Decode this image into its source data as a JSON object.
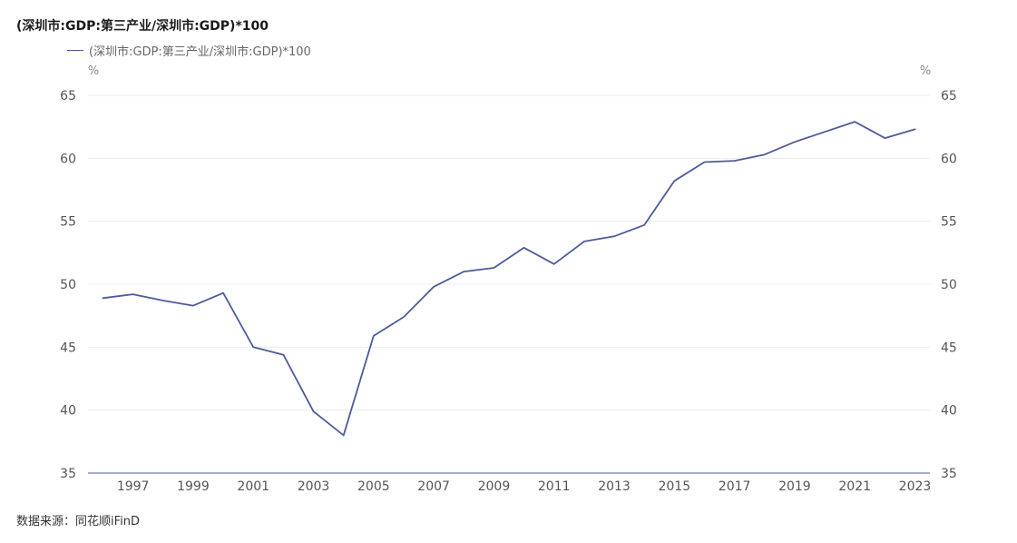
{
  "chart_data": {
    "type": "line",
    "title": "(深圳市:GDP:第三产业/深圳市:GDP)*100",
    "left_unit": "%",
    "right_unit": "%",
    "x": [
      "1996",
      "1997",
      "1998",
      "1999",
      "2000",
      "2001",
      "2002",
      "2003",
      "2004",
      "2005",
      "2006",
      "2007",
      "2008",
      "2009",
      "2010",
      "2011",
      "2012",
      "2013",
      "2014",
      "2015",
      "2016",
      "2017",
      "2018",
      "2019",
      "2020",
      "2021",
      "2022",
      "2023"
    ],
    "x_tick_labels": [
      "1997",
      "1999",
      "2001",
      "2003",
      "2005",
      "2007",
      "2009",
      "2011",
      "2013",
      "2015",
      "2017",
      "2019",
      "2021",
      "2023"
    ],
    "y_tick_labels": [
      "35",
      "40",
      "45",
      "50",
      "55",
      "60",
      "65"
    ],
    "ylim": [
      35,
      65
    ],
    "grid": true,
    "legend_position": "top-left",
    "series": [
      {
        "name": "(深圳市:GDP:第三产业/深圳市:GDP)*100",
        "color": "#4e5a9a",
        "values": [
          48.9,
          49.2,
          48.7,
          48.3,
          49.3,
          45.0,
          44.4,
          39.9,
          38.0,
          45.9,
          47.4,
          49.8,
          51.0,
          51.3,
          52.9,
          51.6,
          53.4,
          53.8,
          54.7,
          58.2,
          59.7,
          59.8,
          60.3,
          61.3,
          62.1,
          62.9,
          61.6,
          62.3
        ]
      }
    ]
  },
  "source_text": "数据来源：同花顺iFinD"
}
